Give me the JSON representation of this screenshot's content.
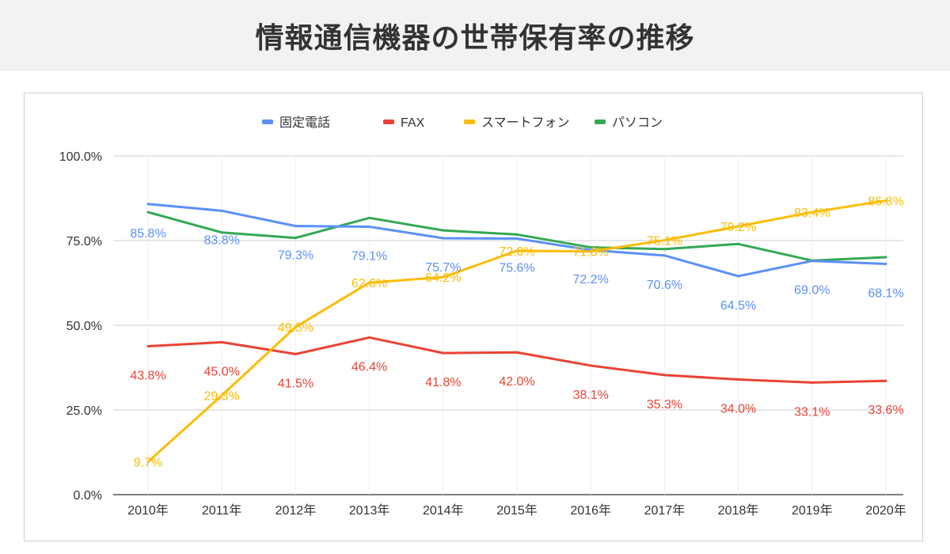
{
  "page_title": "情報通信機器の世帯保有率の推移",
  "chart_data": {
    "type": "line",
    "title": "",
    "xlabel": "",
    "ylabel": "",
    "categories": [
      "2010年",
      "2011年",
      "2012年",
      "2013年",
      "2014年",
      "2015年",
      "2016年",
      "2017年",
      "2018年",
      "2019年",
      "2020年"
    ],
    "ylim": [
      0,
      100
    ],
    "yticks": [
      "0.0%",
      "25.0%",
      "50.0%",
      "75.0%",
      "100.0%"
    ],
    "ytick_values": [
      0,
      25,
      50,
      75,
      100
    ],
    "grid": true,
    "legend_position": "top",
    "series": [
      {
        "name": "固定電話",
        "color": "#5b8ff9",
        "data_labels": true,
        "values": [
          85.8,
          83.8,
          79.3,
          79.1,
          75.7,
          75.6,
          72.2,
          70.6,
          64.5,
          69.0,
          68.1
        ]
      },
      {
        "name": "FAX",
        "color": "#ea4335",
        "data_labels": true,
        "values": [
          43.8,
          45.0,
          41.5,
          46.4,
          41.8,
          42.0,
          38.1,
          35.3,
          34.0,
          33.1,
          33.6
        ]
      },
      {
        "name": "スマートフォン",
        "color": "#fbbc04",
        "data_labels": true,
        "values": [
          9.7,
          29.3,
          49.5,
          62.6,
          64.2,
          72.0,
          71.8,
          75.1,
          79.2,
          83.4,
          86.8
        ]
      },
      {
        "name": "パソコン",
        "color": "#34a853",
        "data_labels": false,
        "values": [
          83.4,
          77.4,
          75.8,
          81.7,
          78.0,
          76.8,
          73.0,
          72.5,
          74.0,
          69.1,
          70.1
        ]
      }
    ]
  }
}
